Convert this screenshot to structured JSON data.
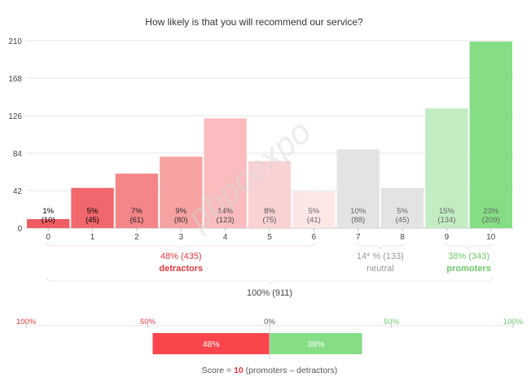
{
  "chart_data": {
    "type": "bar",
    "title": "How likely is that you will recommend our service?",
    "categories": [
      "0",
      "1",
      "2",
      "3",
      "4",
      "5",
      "6",
      "7",
      "8",
      "9",
      "10"
    ],
    "values": [
      10,
      45,
      61,
      80,
      123,
      75,
      41,
      88,
      45,
      134,
      209
    ],
    "percent_labels": [
      "1%",
      "5%",
      "7%",
      "9%",
      "14%",
      "8%",
      "5%",
      "10%",
      "5%",
      "15%",
      "23%"
    ],
    "count_labels": [
      "(10)",
      "(45)",
      "(61)",
      "(80)",
      "(123)",
      "(75)",
      "(41)",
      "(88)",
      "(45)",
      "(134)",
      "(209)"
    ],
    "bar_colors": [
      "#ee5d62",
      "#f0676d",
      "#f48588",
      "#f7a2a3",
      "#fabcbe",
      "#fbd2d3",
      "#fde6e6",
      "#e3e3e3",
      "#e3e3e3",
      "#c3ecc3",
      "#85dd85"
    ],
    "label_colors": [
      "#000000",
      "#000000",
      "#222222",
      "#333333",
      "#444444",
      "#555555",
      "#666666",
      "#666666",
      "#666666",
      "#666666",
      "#666666"
    ],
    "ylim": [
      0,
      210
    ],
    "yticks": [
      0,
      42,
      84,
      126,
      168,
      210
    ],
    "ytick_labels": [
      "0",
      "42",
      "84",
      "126",
      "168",
      "210"
    ],
    "grid": true,
    "groups": {
      "detractors": {
        "value": "48% (435)",
        "label": "detractors",
        "color": "#e0393e",
        "from": 0,
        "to": 6
      },
      "neutral": {
        "value": "14* % (133)",
        "label": "neutral",
        "color": "#999999",
        "from": 7,
        "to": 8
      },
      "promoters": {
        "value": "38% (343)",
        "label": "promoters",
        "color": "#6cc96c",
        "from": 9,
        "to": 10
      },
      "total": {
        "value": "100% (911)"
      }
    },
    "score_scale": {
      "ticks": [
        -100,
        -50,
        0,
        50,
        100
      ],
      "tick_labels": [
        "100%",
        "50%",
        "0%",
        "50%",
        "100%"
      ],
      "tick_colors": [
        "#e0393e",
        "#e0393e",
        "#555555",
        "#6cc96c",
        "#6cc96c"
      ],
      "detractors_pct": 48,
      "promoters_pct": 38,
      "detractors_label": "48%",
      "promoters_label": "38%",
      "detractors_color": "#f9454b",
      "promoters_color": "#85dd85"
    },
    "score_text": {
      "prefix": "Score = ",
      "value": "10",
      "suffix": " (promoters  –  detractors)"
    }
  },
  "watermark": "pbpcexpo"
}
